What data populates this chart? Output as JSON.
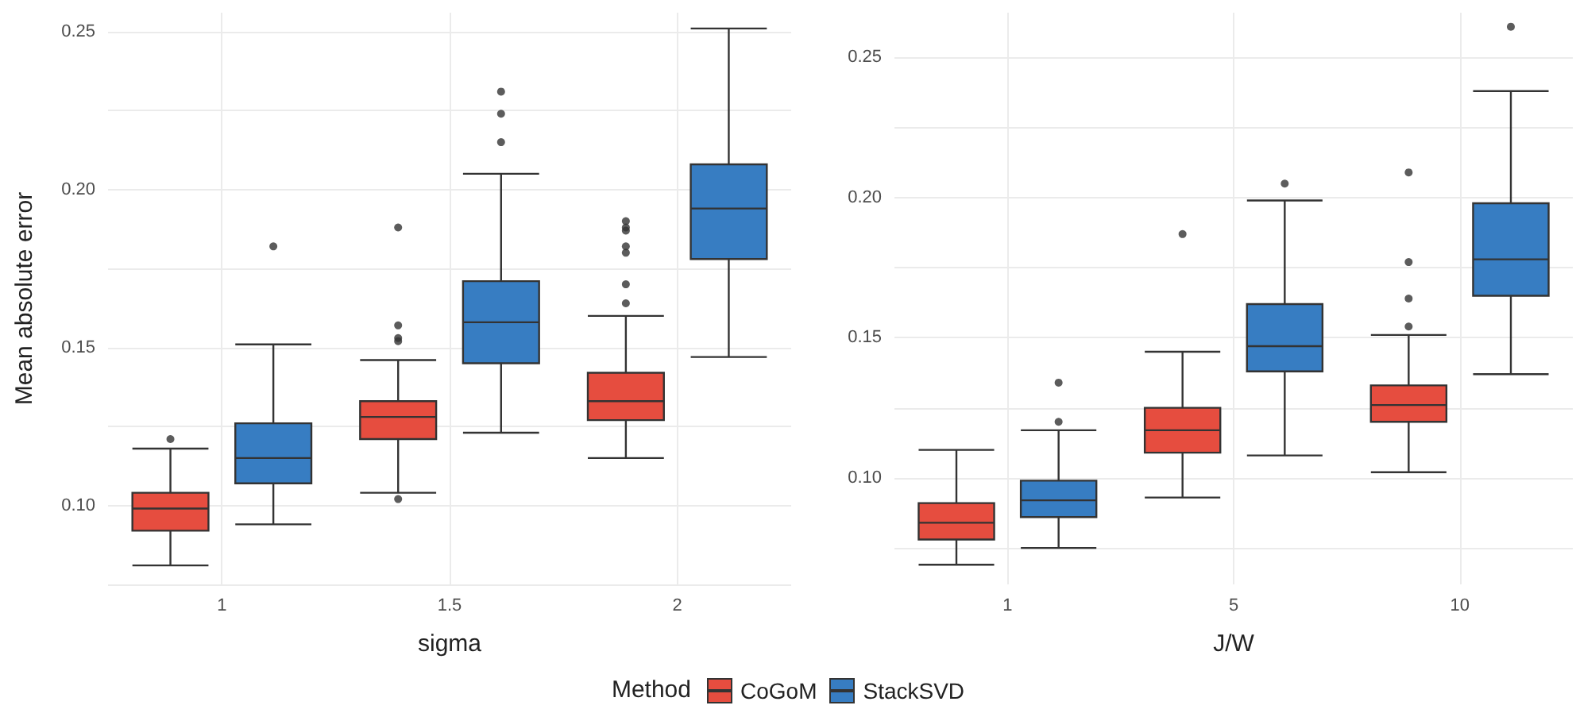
{
  "chart_data": [
    {
      "type": "box",
      "xlabel": "sigma",
      "ylabel": "Mean absolute error",
      "legend_title": "Method",
      "legend": "bottom",
      "grid": true,
      "categories": [
        "1",
        "1.5",
        "2"
      ],
      "ylim": [
        0.075,
        0.256
      ],
      "yticks": [
        {
          "value": 0.075,
          "label": null
        },
        {
          "value": 0.1,
          "label": "0.10"
        },
        {
          "value": 0.125,
          "label": null
        },
        {
          "value": 0.15,
          "label": "0.15"
        },
        {
          "value": 0.175,
          "label": null
        },
        {
          "value": 0.2,
          "label": "0.20"
        },
        {
          "value": 0.225,
          "label": null
        },
        {
          "value": 0.25,
          "label": "0.25"
        }
      ],
      "series": [
        {
          "name": "CoGoM",
          "color": "#e64d3f",
          "boxes": [
            {
              "low": 0.081,
              "q1": 0.092,
              "median": 0.099,
              "q3": 0.104,
              "high": 0.118,
              "outliers": [
                0.121
              ]
            },
            {
              "low": 0.104,
              "q1": 0.121,
              "median": 0.128,
              "q3": 0.133,
              "high": 0.146,
              "outliers": [
                0.188,
                0.157,
                0.153,
                0.152,
                0.102
              ]
            },
            {
              "low": 0.115,
              "q1": 0.127,
              "median": 0.133,
              "q3": 0.142,
              "high": 0.16,
              "outliers": [
                0.19,
                0.188,
                0.187,
                0.182,
                0.18,
                0.17,
                0.164
              ]
            }
          ]
        },
        {
          "name": "StackSVD",
          "color": "#377dc2",
          "boxes": [
            {
              "low": 0.094,
              "q1": 0.107,
              "median": 0.115,
              "q3": 0.126,
              "high": 0.151,
              "outliers": [
                0.182
              ]
            },
            {
              "low": 0.123,
              "q1": 0.145,
              "median": 0.158,
              "q3": 0.171,
              "high": 0.205,
              "outliers": [
                0.231,
                0.224,
                0.215
              ]
            },
            {
              "low": 0.147,
              "q1": 0.178,
              "median": 0.194,
              "q3": 0.208,
              "high": 0.251
            }
          ]
        }
      ]
    },
    {
      "type": "box",
      "xlabel": "J/W",
      "grid": true,
      "categories": [
        "1",
        "5",
        "10"
      ],
      "ylim": [
        0.062,
        0.266
      ],
      "yticks": [
        {
          "value": 0.075,
          "label": null
        },
        {
          "value": 0.1,
          "label": "0.10"
        },
        {
          "value": 0.125,
          "label": null
        },
        {
          "value": 0.15,
          "label": "0.15"
        },
        {
          "value": 0.175,
          "label": null
        },
        {
          "value": 0.2,
          "label": "0.20"
        },
        {
          "value": 0.225,
          "label": null
        },
        {
          "value": 0.25,
          "label": "0.25"
        }
      ],
      "series": [
        {
          "color": "#e64d3f",
          "boxes": [
            {
              "low": 0.069,
              "q1": 0.078,
              "median": 0.084,
              "q3": 0.091,
              "high": 0.11
            },
            {
              "low": 0.093,
              "q1": 0.109,
              "median": 0.117,
              "q3": 0.125,
              "high": 0.145,
              "outliers": [
                0.187
              ]
            },
            {
              "low": 0.102,
              "q1": 0.12,
              "median": 0.126,
              "q3": 0.133,
              "high": 0.151,
              "outliers": [
                0.209,
                0.177,
                0.164,
                0.154
              ]
            }
          ]
        },
        {
          "color": "#377dc2",
          "boxes": [
            {
              "low": 0.075,
              "q1": 0.086,
              "median": 0.092,
              "q3": 0.099,
              "high": 0.117,
              "outliers": [
                0.134,
                0.12
              ]
            },
            {
              "low": 0.108,
              "q1": 0.138,
              "median": 0.147,
              "q3": 0.162,
              "high": 0.199,
              "outliers": [
                0.205
              ]
            },
            {
              "low": 0.137,
              "q1": 0.165,
              "median": 0.178,
              "q3": 0.198,
              "high": 0.238,
              "outliers": [
                0.261
              ]
            }
          ]
        }
      ]
    }
  ]
}
